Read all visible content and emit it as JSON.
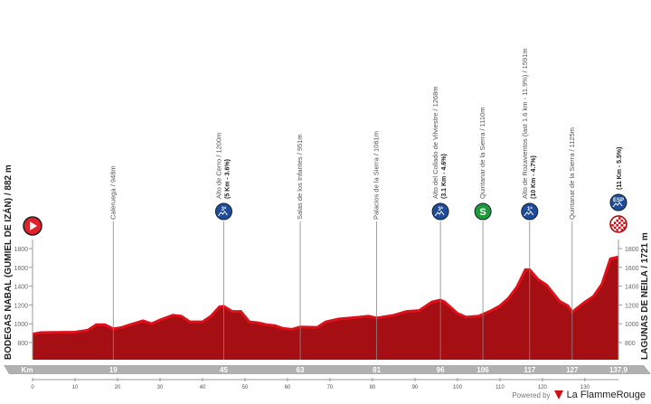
{
  "chart_data": {
    "type": "area",
    "start_label": "BODEGAS NABAL (GUMIEL DE IZÁN) / 882 m",
    "finish_label": "LAGUNAS DE NEILA / 1721 m",
    "xlabel": "Km",
    "xlim": [
      0,
      137.9
    ],
    "ylim": [
      600,
      1900
    ],
    "y_ticks": [
      800,
      1000,
      1200,
      1400,
      1600,
      1800
    ],
    "x_ticks": [
      0,
      10,
      20,
      30,
      40,
      50,
      60,
      70,
      80,
      90,
      100,
      110,
      120,
      130
    ],
    "profile": [
      [
        0,
        900
      ],
      [
        2,
        915
      ],
      [
        10,
        920
      ],
      [
        13,
        940
      ],
      [
        15,
        1000
      ],
      [
        17,
        1000
      ],
      [
        19,
        955
      ],
      [
        21,
        970
      ],
      [
        23,
        1000
      ],
      [
        26,
        1040
      ],
      [
        28,
        1010
      ],
      [
        30,
        1050
      ],
      [
        33,
        1100
      ],
      [
        35,
        1090
      ],
      [
        37,
        1030
      ],
      [
        40,
        1030
      ],
      [
        42,
        1090
      ],
      [
        44,
        1190
      ],
      [
        45,
        1195
      ],
      [
        47,
        1140
      ],
      [
        49,
        1140
      ],
      [
        51,
        1030
      ],
      [
        53,
        1020
      ],
      [
        55,
        1000
      ],
      [
        57,
        990
      ],
      [
        59,
        960
      ],
      [
        61,
        950
      ],
      [
        63,
        975
      ],
      [
        67,
        970
      ],
      [
        69,
        1030
      ],
      [
        72,
        1060
      ],
      [
        77,
        1080
      ],
      [
        79,
        1090
      ],
      [
        81,
        1070
      ],
      [
        85,
        1100
      ],
      [
        88,
        1140
      ],
      [
        91,
        1150
      ],
      [
        94,
        1240
      ],
      [
        96,
        1262
      ],
      [
        97,
        1240
      ],
      [
        100,
        1120
      ],
      [
        102,
        1080
      ],
      [
        105,
        1090
      ],
      [
        106,
        1110
      ],
      [
        108,
        1150
      ],
      [
        110,
        1200
      ],
      [
        112,
        1280
      ],
      [
        114,
        1400
      ],
      [
        116,
        1585
      ],
      [
        117,
        1585
      ],
      [
        119,
        1480
      ],
      [
        121,
        1420
      ],
      [
        124,
        1250
      ],
      [
        126,
        1200
      ],
      [
        127,
        1130
      ],
      [
        128,
        1170
      ],
      [
        130,
        1240
      ],
      [
        132,
        1300
      ],
      [
        134,
        1430
      ],
      [
        136,
        1700
      ],
      [
        137.9,
        1721
      ]
    ],
    "waypoints": [
      {
        "km": "19",
        "label": "Caleruega / 948m",
        "detail": "",
        "icon": ""
      },
      {
        "km": "45",
        "label": "Alto de Cerro / 1200m",
        "detail": "(5 Km - 3.6%)",
        "icon": "3ª"
      },
      {
        "km": "63",
        "label": "Salas de los Infantes / 951m",
        "detail": "",
        "icon": ""
      },
      {
        "km": "81",
        "label": "Palacios de la Sierra / 1061m",
        "detail": "",
        "icon": ""
      },
      {
        "km": "96",
        "label": "Alto del Collado de Vilviestre / 1268m",
        "detail": "(3.1 Km - 4.6%)",
        "icon": "3ª"
      },
      {
        "km": "106",
        "label": "Quintanar de la Sierra / 1110m",
        "detail": "",
        "icon": "S"
      },
      {
        "km": "117",
        "label": "Alto de Rozavientos (last 1.6 km - 11.9%) / 1591m",
        "detail": "(10 Km - 4.7%)",
        "icon": "1ª"
      },
      {
        "km": "127",
        "label": "Quintanar de la Sierra / 1125m",
        "detail": "",
        "icon": ""
      },
      {
        "km": "137,9",
        "label": "",
        "detail": "(11 Km - 5.5%)",
        "icon": "ESP"
      }
    ],
    "colors": {
      "profile": "#a50f14",
      "profile_edge": "#e0101a",
      "mountain": "#1e4c9a",
      "sprint": "#1f9a3a",
      "start": "#e0202a",
      "km_bar": "#b0b0b0"
    }
  },
  "footer": {
    "powered": "Powered by",
    "brand": "La FlammeRouge"
  }
}
